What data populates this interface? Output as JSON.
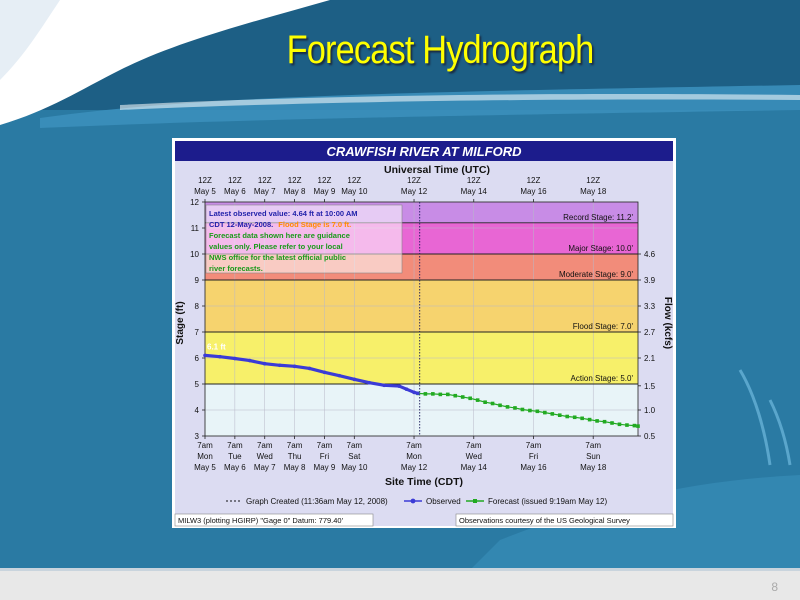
{
  "slide": {
    "title": "Forecast Hydrograph",
    "page_number": "8"
  },
  "chart_data": {
    "type": "line",
    "title": "CRAWFISH RIVER  AT MILFORD",
    "top_axis_title": "Universal Time (UTC)",
    "bottom_axis_title": "Site Time (CDT)",
    "ylabel": "Stage (ft)",
    "y2label": "Flow (kcfs)",
    "ylim": [
      3,
      12
    ],
    "y_ticks": [
      "3",
      "4",
      "5",
      "6",
      "7",
      "8",
      "9",
      "10",
      "11",
      "12"
    ],
    "y2_ticks": [
      {
        "stage": 4,
        "label": "1.0"
      },
      {
        "stage": 4.93,
        "label": "1.5"
      },
      {
        "stage": 6,
        "label": "2.1"
      },
      {
        "stage": 7,
        "label": "2.7"
      },
      {
        "stage": 8,
        "label": "3.3"
      },
      {
        "stage": 9,
        "label": "3.9"
      },
      {
        "stage": 10,
        "label": "4.6"
      },
      {
        "stage": 3,
        "label": "0.5"
      }
    ],
    "x_range_days": [
      0,
      14.5
    ],
    "top_ticks": [
      {
        "day": 0,
        "line1": "12Z",
        "line2": "May 5"
      },
      {
        "day": 1,
        "line1": "12Z",
        "line2": "May 6"
      },
      {
        "day": 2,
        "line1": "12Z",
        "line2": "May 7"
      },
      {
        "day": 3,
        "line1": "12Z",
        "line2": "May 8"
      },
      {
        "day": 4,
        "line1": "12Z",
        "line2": "May 9"
      },
      {
        "day": 5,
        "line1": "12Z",
        "line2": "May 10"
      },
      {
        "day": 7,
        "line1": "12Z",
        "line2": "May 12"
      },
      {
        "day": 9,
        "line1": "12Z",
        "line2": "May 14"
      },
      {
        "day": 11,
        "line1": "12Z",
        "line2": "May 16"
      },
      {
        "day": 13,
        "line1": "12Z",
        "line2": "May 18"
      }
    ],
    "bottom_ticks": [
      {
        "day": 0,
        "line1": "7am",
        "line2": "Mon",
        "line3": "May 5"
      },
      {
        "day": 1,
        "line1": "7am",
        "line2": "Tue",
        "line3": "May 6"
      },
      {
        "day": 2,
        "line1": "7am",
        "line2": "Wed",
        "line3": "May 7"
      },
      {
        "day": 3,
        "line1": "7am",
        "line2": "Thu",
        "line3": "May 8"
      },
      {
        "day": 4,
        "line1": "7am",
        "line2": "Fri",
        "line3": "May 9"
      },
      {
        "day": 5,
        "line1": "7am",
        "line2": "Sat",
        "line3": "May 10"
      },
      {
        "day": 7,
        "line1": "7am",
        "line2": "Mon",
        "line3": "May 12"
      },
      {
        "day": 9,
        "line1": "7am",
        "line2": "Wed",
        "line3": "May 14"
      },
      {
        "day": 11,
        "line1": "7am",
        "line2": "Fri",
        "line3": "May 16"
      },
      {
        "day": 13,
        "line1": "7am",
        "line2": "Sun",
        "line3": "May 18"
      }
    ],
    "stage_bands": [
      {
        "from": 3,
        "to": 5,
        "color": "#e8f4f8"
      },
      {
        "from": 5,
        "to": 7,
        "color": "#f7f06a"
      },
      {
        "from": 7,
        "to": 9,
        "color": "#f6d36e"
      },
      {
        "from": 9,
        "to": 10,
        "color": "#f28c7a"
      },
      {
        "from": 10,
        "to": 11.2,
        "color": "#e866d4"
      },
      {
        "from": 11.2,
        "to": 12,
        "color": "#c88ce6"
      }
    ],
    "thresholds": [
      {
        "value": 11.2,
        "label": "Record Stage: 11.2'"
      },
      {
        "value": 10.0,
        "label": "Major Stage: 10.0'"
      },
      {
        "value": 9.0,
        "label": "Moderate Stage: 9.0'"
      },
      {
        "value": 7.0,
        "label": "Flood Stage: 7.0'"
      },
      {
        "value": 5.0,
        "label": "Action Stage: 5.0'"
      }
    ],
    "graph_created_day": 7.19,
    "series": [
      {
        "name": "Observed",
        "color": "#3b3bd6",
        "points": [
          [
            0,
            6.1
          ],
          [
            0.5,
            6.05
          ],
          [
            1,
            5.98
          ],
          [
            1.5,
            5.9
          ],
          [
            2,
            5.78
          ],
          [
            2.5,
            5.72
          ],
          [
            3,
            5.68
          ],
          [
            3.5,
            5.6
          ],
          [
            4,
            5.45
          ],
          [
            4.5,
            5.32
          ],
          [
            5,
            5.18
          ],
          [
            5.5,
            5.05
          ],
          [
            6,
            4.95
          ],
          [
            6.5,
            4.92
          ],
          [
            6.75,
            4.8
          ],
          [
            7,
            4.68
          ],
          [
            7.13,
            4.64
          ]
        ]
      },
      {
        "name": "Forecast",
        "color": "#22aa22",
        "points": [
          [
            7.13,
            4.64
          ],
          [
            7.38,
            4.62
          ],
          [
            7.63,
            4.62
          ],
          [
            7.88,
            4.6
          ],
          [
            8.13,
            4.6
          ],
          [
            8.38,
            4.55
          ],
          [
            8.63,
            4.5
          ],
          [
            8.88,
            4.45
          ],
          [
            9.13,
            4.38
          ],
          [
            9.38,
            4.3
          ],
          [
            9.63,
            4.25
          ],
          [
            9.88,
            4.18
          ],
          [
            10.13,
            4.12
          ],
          [
            10.38,
            4.08
          ],
          [
            10.63,
            4.02
          ],
          [
            10.88,
            3.98
          ],
          [
            11.13,
            3.95
          ],
          [
            11.38,
            3.9
          ],
          [
            11.63,
            3.85
          ],
          [
            11.88,
            3.8
          ],
          [
            12.13,
            3.75
          ],
          [
            12.38,
            3.72
          ],
          [
            12.63,
            3.68
          ],
          [
            12.88,
            3.63
          ],
          [
            13.13,
            3.58
          ],
          [
            13.38,
            3.55
          ],
          [
            13.63,
            3.5
          ],
          [
            13.88,
            3.45
          ],
          [
            14.13,
            3.42
          ],
          [
            14.38,
            3.4
          ],
          [
            14.5,
            3.38
          ]
        ]
      }
    ],
    "start_label": "6.1 ft",
    "notice": {
      "line1": "Latest observed value: 4.64 ft at 10:00 AM",
      "line2a": "CDT 12-May-2008.",
      "line2b": "Flood Stage is 7.0 ft.",
      "line3": "Forecast data shown here are guidance",
      "line4": "values only. Please refer to your local",
      "line5": "NWS office for the latest official public",
      "line6": "river forecasts."
    },
    "legend": {
      "graph_created": "Graph Created (11:36am May 12, 2008)",
      "observed": "Observed",
      "forecast": "Forecast (issued 9:19am May 12)"
    },
    "footer_left": "MILW3 (plotting HGIRP)  \"Gage 0\" Datum: 779.40'",
    "footer_right": "Observations courtesy of the  US Geological Survey"
  }
}
